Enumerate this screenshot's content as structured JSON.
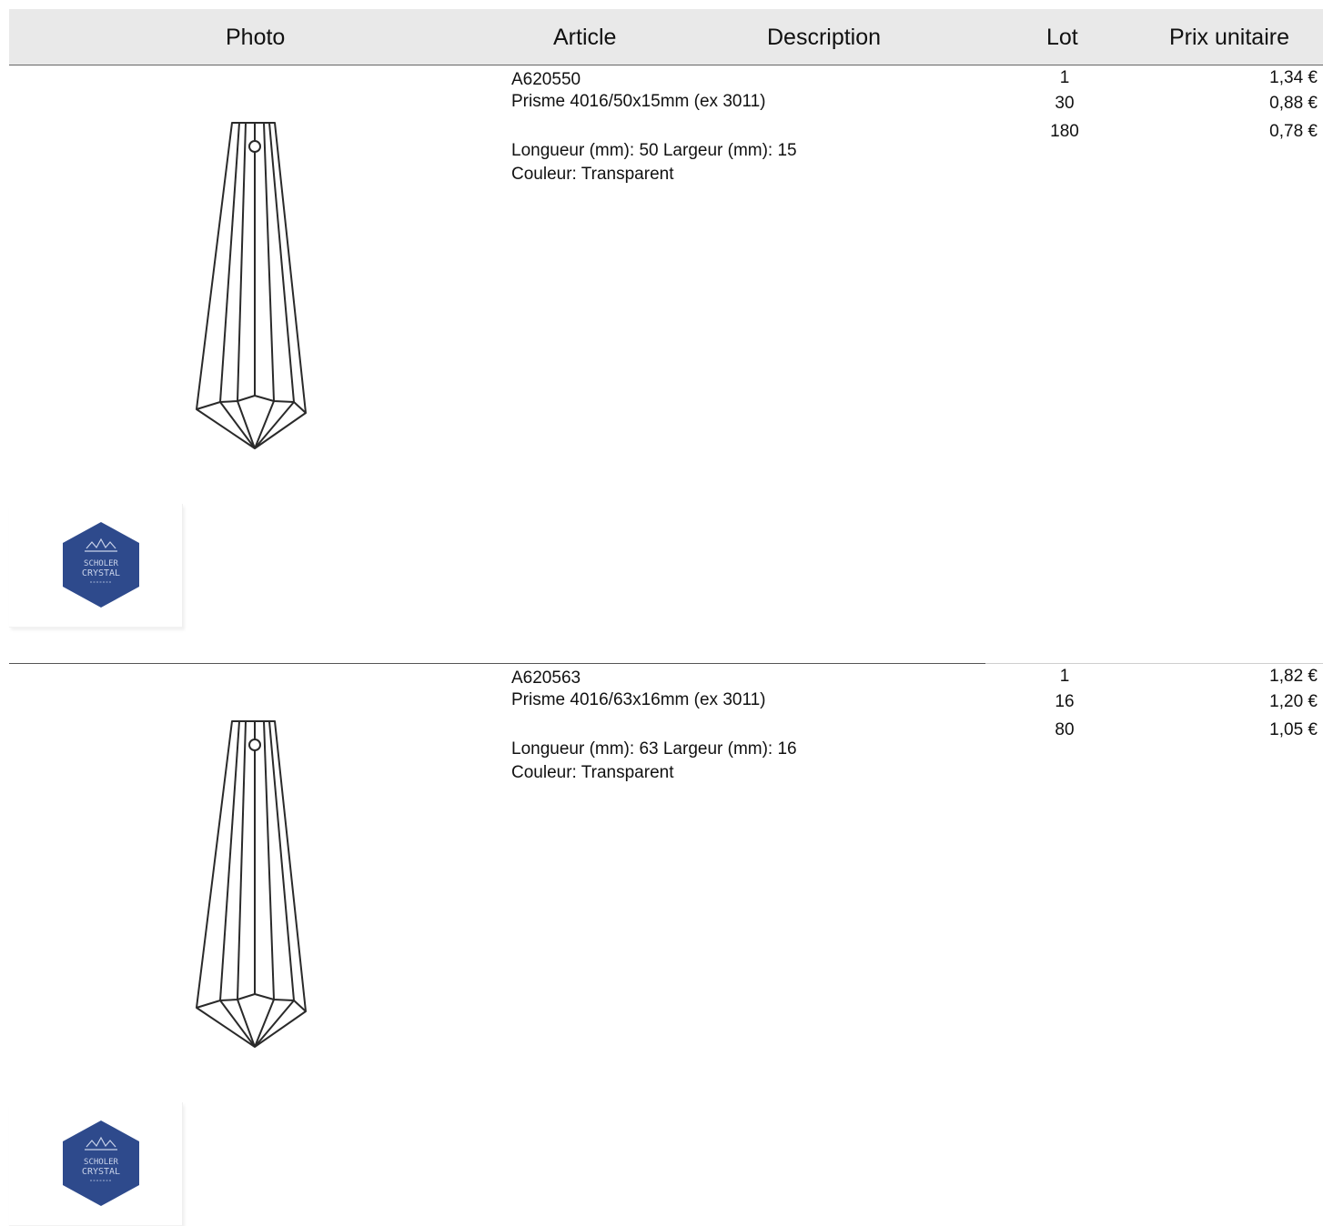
{
  "header": {
    "photo": "Photo",
    "article": "Article",
    "description": "Description",
    "lot": "Lot",
    "prix": "Prix unitaire"
  },
  "products": [
    {
      "code": "A620550",
      "name": "Prisme 4016/50x15mm (ex 3011)",
      "dimensions": "Longueur (mm): 50 Largeur (mm): 15",
      "color": "Couleur: Transparent",
      "lots": [
        "1",
        "30",
        "180"
      ],
      "prices": [
        "1,34 €",
        "0,88 €",
        "0,78 €"
      ]
    },
    {
      "code": "A620563",
      "name": "Prisme 4016/63x16mm (ex 3011)",
      "dimensions": "Longueur (mm): 63 Largeur (mm): 16",
      "color": "Couleur: Transparent",
      "lots": [
        "1",
        "16",
        "80"
      ],
      "prices": [
        "1,82 €",
        "1,20 €",
        "1,05 €"
      ]
    }
  ],
  "logo": {
    "line1": "SCHOLER",
    "line2": "CRYSTAL",
    "color": "#2e4a8c"
  }
}
